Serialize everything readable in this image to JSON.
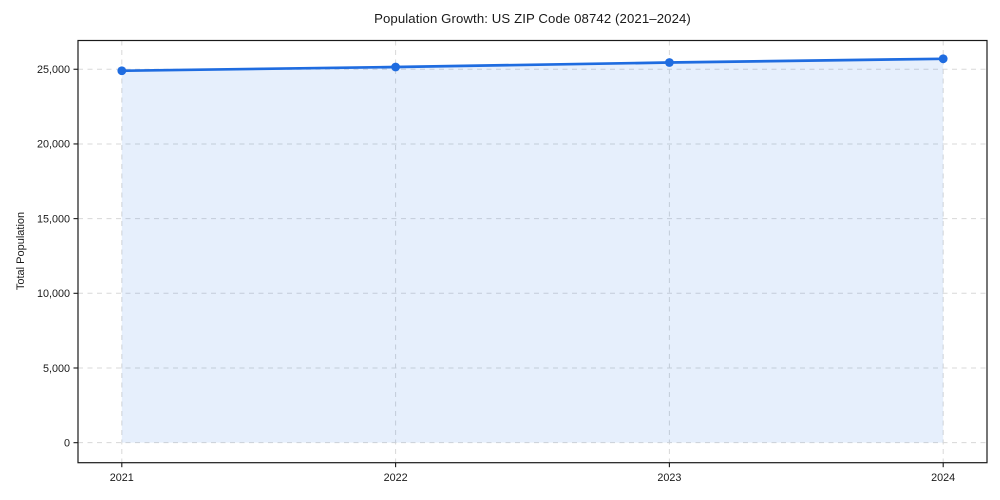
{
  "chart_data": {
    "type": "area",
    "title": "Population Growth: US ZIP Code 08742 (2021–2024)",
    "xlabel": "",
    "ylabel": "Total Population",
    "x": [
      2021,
      2022,
      2023,
      2024
    ],
    "series": [
      {
        "name": "Total Population",
        "values": [
          24900,
          25150,
          25450,
          25700
        ]
      }
    ],
    "xtick_labels": [
      "2021",
      "2022",
      "2023",
      "2024"
    ],
    "yticks": [
      0,
      5000,
      10000,
      15000,
      20000,
      25000
    ],
    "ytick_labels": [
      "0",
      "5,000",
      "10,000",
      "15,000",
      "20,000",
      "25,000"
    ],
    "xlim": [
      2020.84,
      2024.16
    ],
    "ylim": [
      -1340,
      26925
    ],
    "grid": "dashed horizontal and vertical",
    "legend_position": "none",
    "colors": {
      "line": "#1f6ce0",
      "marker": "#1f6ce0",
      "fill": "#1f6ce0",
      "fill_opacity": 0.11,
      "grid": "#d8d8d8",
      "spine": "#1a1a1a",
      "text": "#1a1a1a",
      "background": "#ffffff"
    }
  }
}
